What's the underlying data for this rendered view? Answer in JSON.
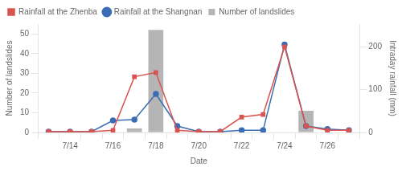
{
  "chart_data": {
    "type": "combo",
    "xlabel": "Date",
    "ylabel": "Number of landslides",
    "y2label": "Intraday rainfall (mm)",
    "categories": [
      null,
      "7/14",
      null,
      "7/16",
      null,
      "7/18",
      null,
      "7/20",
      null,
      "7/22",
      null,
      "7/24",
      null,
      "7/26",
      null
    ],
    "series": [
      {
        "name": "Rainfall at\nthe Zhenba",
        "type": "line",
        "axis": "y2",
        "color": "#d9534f",
        "marker": "square",
        "values": [
          2,
          2,
          2,
          5,
          130,
          140,
          5,
          2,
          2,
          36,
          42,
          200,
          15,
          5,
          5
        ]
      },
      {
        "name": "Rainfall at\nthe Shangnan",
        "type": "line",
        "axis": "y2",
        "color": "#3a6db5",
        "marker": "circle",
        "values": [
          2,
          2,
          2,
          28,
          30,
          90,
          15,
          2,
          2,
          5,
          5,
          205,
          15,
          8,
          5
        ]
      },
      {
        "name": "Number of\nlandslides",
        "type": "bar",
        "axis": "y",
        "color": "#b5b5b5",
        "values": [
          0,
          0,
          0,
          0,
          2,
          52,
          0,
          0,
          0,
          0,
          0,
          0,
          11,
          0,
          0
        ]
      }
    ],
    "ylim": [
      0,
      55
    ],
    "yticks": [
      0,
      10,
      20,
      30,
      40,
      50
    ],
    "y2lim": [
      0,
      253
    ],
    "y2ticks": [
      0,
      100,
      200
    ],
    "grid": false,
    "legend": "upper left"
  }
}
